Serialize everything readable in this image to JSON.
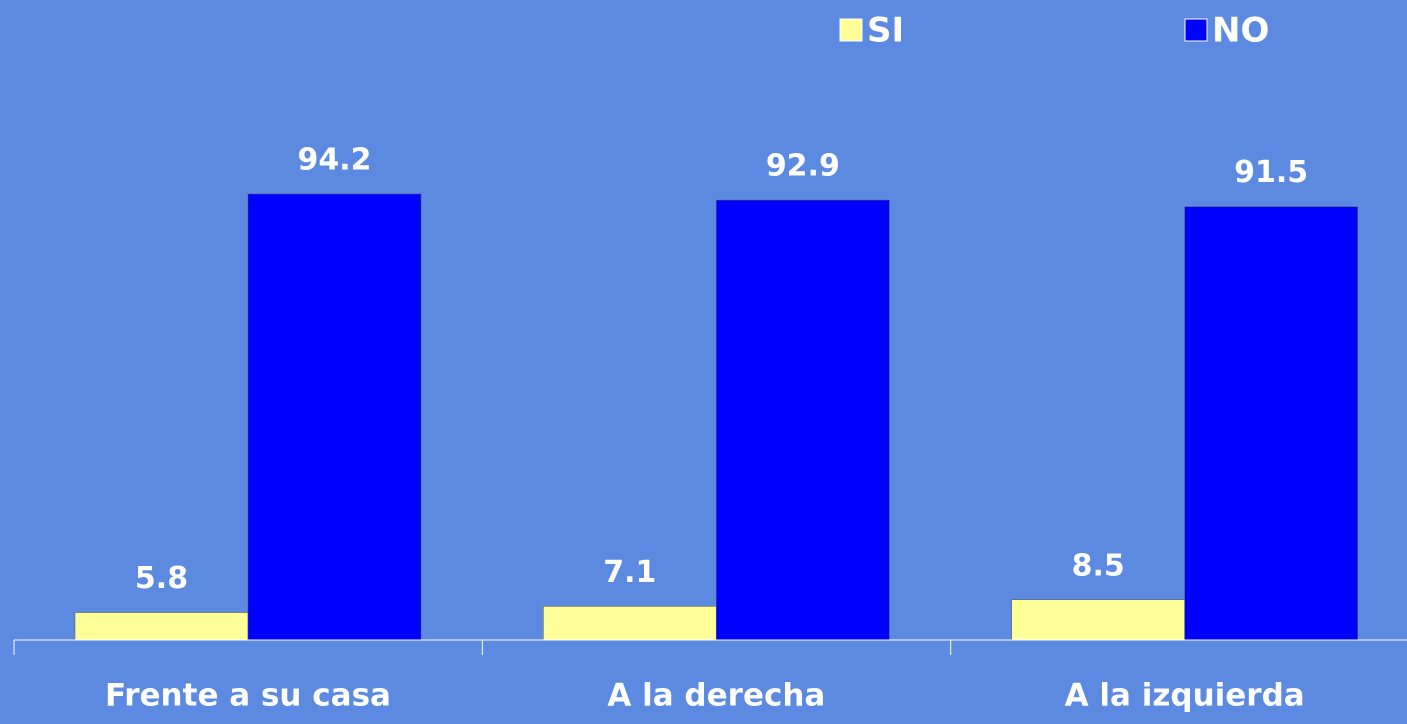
{
  "chart_data": {
    "type": "bar",
    "categories": [
      "Frente a su casa",
      "A la derecha",
      "A la izquierda"
    ],
    "series": [
      {
        "name": "SI",
        "color": "#ffff99",
        "values": [
          5.8,
          7.1,
          8.5
        ]
      },
      {
        "name": "NO",
        "color": "#0000ff",
        "values": [
          94.2,
          92.9,
          91.5
        ]
      }
    ],
    "ylim": [
      0,
      100
    ]
  }
}
